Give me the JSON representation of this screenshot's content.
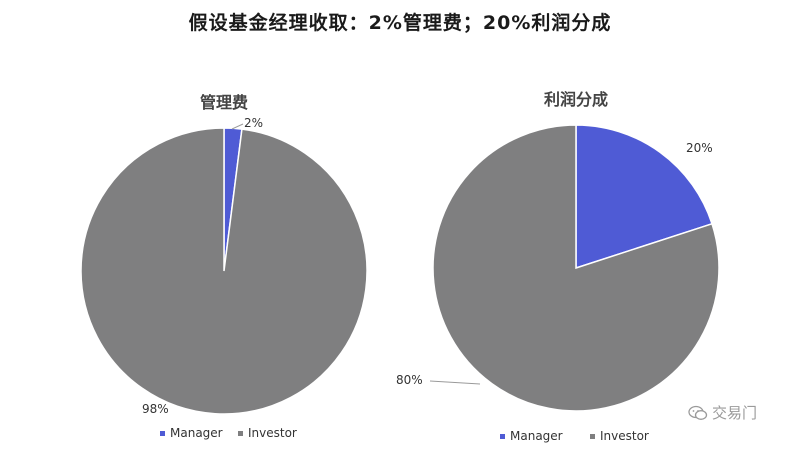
{
  "title": "假设基金经理收取：2%管理费；20%利润分成",
  "colors": {
    "manager": "#4f5bd5",
    "investor": "#7f7f80",
    "line": "#9a9a9a"
  },
  "chart_data": [
    {
      "type": "pie",
      "title": "管理费",
      "categories": [
        "Manager",
        "Investor"
      ],
      "values": [
        2,
        98
      ],
      "labels": [
        "2%",
        "98%"
      ],
      "legend": "bottom"
    },
    {
      "type": "pie",
      "title": "利润分成",
      "categories": [
        "Manager",
        "Investor"
      ],
      "values": [
        20,
        80
      ],
      "labels": [
        "20%",
        "80%"
      ],
      "legend": "bottom"
    }
  ],
  "watermark": {
    "text": "交易门",
    "icon": "wechat-icon"
  }
}
